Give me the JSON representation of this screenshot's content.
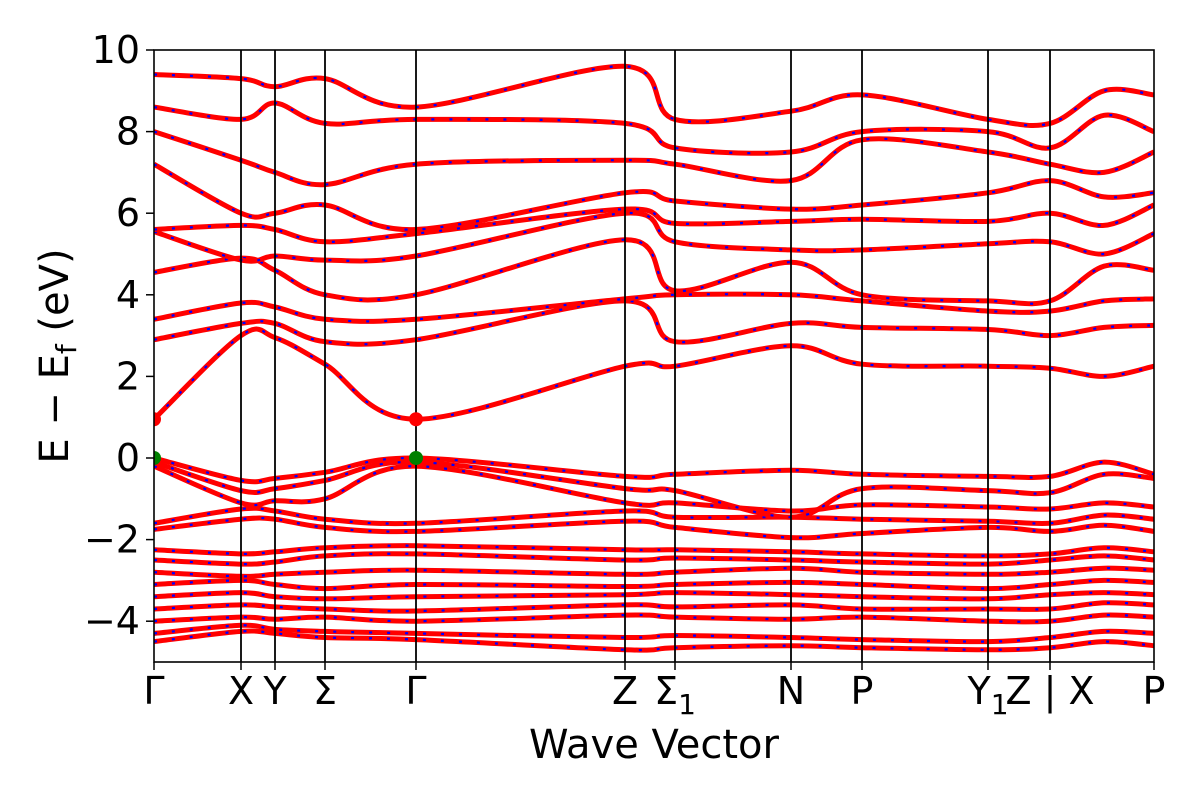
{
  "chart_data": {
    "type": "line",
    "title": "",
    "xlabel": "Wave Vector",
    "ylabel": {
      "pre": "E − E",
      "sub": "f",
      "post": " (eV)"
    },
    "ylim": [
      -5,
      10
    ],
    "yticks": [
      {
        "value": 10,
        "label": "10"
      },
      {
        "value": 8,
        "label": "8"
      },
      {
        "value": 6,
        "label": "6"
      },
      {
        "value": 4,
        "label": "4"
      },
      {
        "value": 2,
        "label": "2"
      },
      {
        "value": 0,
        "label": "0"
      },
      {
        "value": -2,
        "label": "−2"
      },
      {
        "value": -4,
        "label": "−4"
      }
    ],
    "xlim": [
      0,
      1
    ],
    "kpoints": [
      {
        "x": 0.0,
        "label": "Γ",
        "sub": ""
      },
      {
        "x": 0.087,
        "label": "X",
        "sub": ""
      },
      {
        "x": 0.121,
        "label": "Y",
        "sub": ""
      },
      {
        "x": 0.171,
        "label": "Σ",
        "sub": ""
      },
      {
        "x": 0.262,
        "label": "Γ",
        "sub": ""
      },
      {
        "x": 0.471,
        "label": "Z",
        "sub": ""
      },
      {
        "x": 0.521,
        "label": "Σ",
        "sub": "1"
      },
      {
        "x": 0.637,
        "label": "N",
        "sub": ""
      },
      {
        "x": 0.708,
        "label": "P",
        "sub": ""
      },
      {
        "x": 0.834,
        "label": "Y",
        "sub": "1"
      },
      {
        "x": 0.896,
        "label": "Z | X",
        "sub": ""
      },
      {
        "x": 1.0,
        "label": "P",
        "sub": ""
      }
    ],
    "band_colors": {
      "line": "#ff0000",
      "dash": "#0000ff"
    },
    "highlight_points": [
      {
        "x": 0.0,
        "y": 0.95,
        "color": "#ff0000",
        "label": "CBM"
      },
      {
        "x": 0.262,
        "y": 0.95,
        "color": "#ff0000",
        "label": "CBM"
      },
      {
        "x": 0.0,
        "y": 0.0,
        "color": "#008000",
        "label": "VBM"
      },
      {
        "x": 0.262,
        "y": 0.0,
        "color": "#008000",
        "label": "VBM"
      }
    ],
    "bands": [
      [
        [
          0,
          -4.5
        ],
        [
          0.087,
          -4.25
        ],
        [
          0.121,
          -4.3
        ],
        [
          0.171,
          -4.4
        ],
        [
          0.262,
          -4.45
        ],
        [
          0.471,
          -4.7
        ],
        [
          0.521,
          -4.65
        ],
        [
          0.637,
          -4.6
        ],
        [
          0.708,
          -4.65
        ],
        [
          0.834,
          -4.7
        ],
        [
          0.896,
          -4.65
        ],
        [
          0.95,
          -4.5
        ],
        [
          1,
          -4.6
        ]
      ],
      [
        [
          0,
          -4.3
        ],
        [
          0.087,
          -4.1
        ],
        [
          0.121,
          -4.2
        ],
        [
          0.171,
          -4.25
        ],
        [
          0.262,
          -4.3
        ],
        [
          0.471,
          -4.4
        ],
        [
          0.521,
          -4.35
        ],
        [
          0.637,
          -4.4
        ],
        [
          0.708,
          -4.45
        ],
        [
          0.834,
          -4.5
        ],
        [
          0.896,
          -4.4
        ],
        [
          0.95,
          -4.25
        ],
        [
          1,
          -4.3
        ]
      ],
      [
        [
          0,
          -4.0
        ],
        [
          0.087,
          -3.9
        ],
        [
          0.121,
          -3.95
        ],
        [
          0.171,
          -3.9
        ],
        [
          0.262,
          -4.0
        ],
        [
          0.471,
          -3.85
        ],
        [
          0.521,
          -3.9
        ],
        [
          0.637,
          -3.95
        ],
        [
          0.708,
          -3.9
        ],
        [
          0.834,
          -4.0
        ],
        [
          0.896,
          -4.0
        ],
        [
          0.95,
          -3.85
        ],
        [
          1,
          -3.9
        ]
      ],
      [
        [
          0,
          -3.7
        ],
        [
          0.087,
          -3.6
        ],
        [
          0.121,
          -3.65
        ],
        [
          0.171,
          -3.7
        ],
        [
          0.262,
          -3.75
        ],
        [
          0.471,
          -3.6
        ],
        [
          0.521,
          -3.65
        ],
        [
          0.637,
          -3.6
        ],
        [
          0.708,
          -3.7
        ],
        [
          0.834,
          -3.7
        ],
        [
          0.896,
          -3.7
        ],
        [
          0.95,
          -3.55
        ],
        [
          1,
          -3.6
        ]
      ],
      [
        [
          0,
          -3.4
        ],
        [
          0.087,
          -3.3
        ],
        [
          0.121,
          -3.4
        ],
        [
          0.171,
          -3.45
        ],
        [
          0.262,
          -3.4
        ],
        [
          0.471,
          -3.35
        ],
        [
          0.521,
          -3.3
        ],
        [
          0.637,
          -3.35
        ],
        [
          0.708,
          -3.4
        ],
        [
          0.834,
          -3.45
        ],
        [
          0.896,
          -3.35
        ],
        [
          0.95,
          -3.3
        ],
        [
          1,
          -3.35
        ]
      ],
      [
        [
          0,
          -3.1
        ],
        [
          0.087,
          -3.0
        ],
        [
          0.121,
          -3.1
        ],
        [
          0.171,
          -3.2
        ],
        [
          0.262,
          -3.1
        ],
        [
          0.471,
          -3.15
        ],
        [
          0.521,
          -3.1
        ],
        [
          0.637,
          -3.05
        ],
        [
          0.708,
          -3.1
        ],
        [
          0.834,
          -3.2
        ],
        [
          0.896,
          -3.1
        ],
        [
          0.95,
          -3.0
        ],
        [
          1,
          -3.05
        ]
      ],
      [
        [
          0,
          -2.8
        ],
        [
          0.087,
          -2.9
        ],
        [
          0.121,
          -2.85
        ],
        [
          0.171,
          -2.8
        ],
        [
          0.262,
          -2.75
        ],
        [
          0.471,
          -2.85
        ],
        [
          0.521,
          -2.8
        ],
        [
          0.637,
          -2.7
        ],
        [
          0.708,
          -2.8
        ],
        [
          0.834,
          -2.85
        ],
        [
          0.896,
          -2.8
        ],
        [
          0.95,
          -2.7
        ],
        [
          1,
          -2.75
        ]
      ],
      [
        [
          0,
          -2.5
        ],
        [
          0.087,
          -2.6
        ],
        [
          0.121,
          -2.55
        ],
        [
          0.171,
          -2.4
        ],
        [
          0.262,
          -2.35
        ],
        [
          0.471,
          -2.5
        ],
        [
          0.521,
          -2.45
        ],
        [
          0.637,
          -2.5
        ],
        [
          0.708,
          -2.55
        ],
        [
          0.834,
          -2.6
        ],
        [
          0.896,
          -2.5
        ],
        [
          0.95,
          -2.4
        ],
        [
          1,
          -2.5
        ]
      ],
      [
        [
          0,
          -2.25
        ],
        [
          0.087,
          -2.35
        ],
        [
          0.121,
          -2.3
        ],
        [
          0.171,
          -2.2
        ],
        [
          0.262,
          -2.15
        ],
        [
          0.471,
          -2.25
        ],
        [
          0.521,
          -2.25
        ],
        [
          0.637,
          -2.3
        ],
        [
          0.708,
          -2.35
        ],
        [
          0.834,
          -2.4
        ],
        [
          0.896,
          -2.35
        ],
        [
          0.95,
          -2.2
        ],
        [
          1,
          -2.3
        ]
      ],
      [
        [
          0,
          -1.75
        ],
        [
          0.087,
          -1.5
        ],
        [
          0.121,
          -1.5
        ],
        [
          0.171,
          -1.7
        ],
        [
          0.262,
          -1.8
        ],
        [
          0.471,
          -1.55
        ],
        [
          0.521,
          -1.7
        ],
        [
          0.637,
          -1.95
        ],
        [
          0.708,
          -1.85
        ],
        [
          0.834,
          -1.7
        ],
        [
          0.896,
          -1.8
        ],
        [
          0.95,
          -1.65
        ],
        [
          1,
          -1.8
        ]
      ],
      [
        [
          0,
          -1.6
        ],
        [
          0.087,
          -1.25
        ],
        [
          0.121,
          -1.3
        ],
        [
          0.171,
          -1.5
        ],
        [
          0.262,
          -1.6
        ],
        [
          0.471,
          -1.3
        ],
        [
          0.521,
          -1.45
        ],
        [
          0.637,
          -1.45
        ],
        [
          0.708,
          -1.5
        ],
        [
          0.834,
          -1.55
        ],
        [
          0.896,
          -1.6
        ],
        [
          0.95,
          -1.4
        ],
        [
          1,
          -1.5
        ]
      ],
      [
        [
          0,
          -0.2
        ],
        [
          0.087,
          -1.1
        ],
        [
          0.121,
          -1.05
        ],
        [
          0.171,
          -1.0
        ],
        [
          0.262,
          -0.2
        ],
        [
          0.471,
          -1.1
        ],
        [
          0.521,
          -1.1
        ],
        [
          0.637,
          -1.3
        ],
        [
          0.708,
          -1.15
        ],
        [
          0.834,
          -1.2
        ],
        [
          0.896,
          -1.25
        ],
        [
          0.95,
          -1.1
        ],
        [
          1,
          -1.2
        ]
      ],
      [
        [
          0,
          -0.1
        ],
        [
          0.087,
          -0.8
        ],
        [
          0.121,
          -0.75
        ],
        [
          0.171,
          -0.55
        ],
        [
          0.262,
          -0.1
        ],
        [
          0.471,
          -0.75
        ],
        [
          0.521,
          -0.8
        ],
        [
          0.637,
          -1.45
        ],
        [
          0.708,
          -0.75
        ],
        [
          0.834,
          -0.8
        ],
        [
          0.896,
          -0.85
        ],
        [
          0.95,
          -0.4
        ],
        [
          1,
          -0.5
        ]
      ],
      [
        [
          0,
          0.0
        ],
        [
          0.087,
          -0.55
        ],
        [
          0.121,
          -0.5
        ],
        [
          0.171,
          -0.35
        ],
        [
          0.262,
          0.0
        ],
        [
          0.471,
          -0.45
        ],
        [
          0.521,
          -0.4
        ],
        [
          0.637,
          -0.3
        ],
        [
          0.708,
          -0.4
        ],
        [
          0.834,
          -0.45
        ],
        [
          0.896,
          -0.45
        ],
        [
          0.95,
          -0.1
        ],
        [
          1,
          -0.4
        ]
      ],
      [
        [
          0,
          0.95
        ],
        [
          0.087,
          3.0
        ],
        [
          0.121,
          2.95
        ],
        [
          0.171,
          2.3
        ],
        [
          0.262,
          0.95
        ],
        [
          0.471,
          2.25
        ],
        [
          0.521,
          2.25
        ],
        [
          0.637,
          2.75
        ],
        [
          0.708,
          2.3
        ],
        [
          0.834,
          2.25
        ],
        [
          0.896,
          2.2
        ],
        [
          0.95,
          2.0
        ],
        [
          1,
          2.25
        ]
      ],
      [
        [
          0,
          2.9
        ],
        [
          0.087,
          3.3
        ],
        [
          0.121,
          3.3
        ],
        [
          0.171,
          2.85
        ],
        [
          0.262,
          2.9
        ],
        [
          0.471,
          3.85
        ],
        [
          0.521,
          2.85
        ],
        [
          0.637,
          3.3
        ],
        [
          0.708,
          3.2
        ],
        [
          0.834,
          3.15
        ],
        [
          0.896,
          3.0
        ],
        [
          0.95,
          3.2
        ],
        [
          1,
          3.25
        ]
      ],
      [
        [
          0,
          3.4
        ],
        [
          0.087,
          3.8
        ],
        [
          0.121,
          3.7
        ],
        [
          0.171,
          3.4
        ],
        [
          0.262,
          3.4
        ],
        [
          0.471,
          3.9
        ],
        [
          0.521,
          4.0
        ],
        [
          0.637,
          4.0
        ],
        [
          0.708,
          3.85
        ],
        [
          0.834,
          3.6
        ],
        [
          0.896,
          3.6
        ],
        [
          0.95,
          3.85
        ],
        [
          1,
          3.9
        ]
      ],
      [
        [
          0,
          4.55
        ],
        [
          0.087,
          4.9
        ],
        [
          0.121,
          4.6
        ],
        [
          0.171,
          4.0
        ],
        [
          0.262,
          4.0
        ],
        [
          0.471,
          5.35
        ],
        [
          0.521,
          4.1
        ],
        [
          0.637,
          4.8
        ],
        [
          0.708,
          4.0
        ],
        [
          0.834,
          3.85
        ],
        [
          0.896,
          3.85
        ],
        [
          0.95,
          4.7
        ],
        [
          1,
          4.6
        ]
      ],
      [
        [
          0,
          5.55
        ],
        [
          0.087,
          4.85
        ],
        [
          0.121,
          4.95
        ],
        [
          0.171,
          4.85
        ],
        [
          0.262,
          4.95
        ],
        [
          0.471,
          6.0
        ],
        [
          0.521,
          5.3
        ],
        [
          0.637,
          5.1
        ],
        [
          0.708,
          5.1
        ],
        [
          0.834,
          5.25
        ],
        [
          0.896,
          5.3
        ],
        [
          0.95,
          5.0
        ],
        [
          1,
          5.5
        ]
      ],
      [
        [
          0,
          5.6
        ],
        [
          0.087,
          5.7
        ],
        [
          0.121,
          5.6
        ],
        [
          0.171,
          5.3
        ],
        [
          0.262,
          5.5
        ],
        [
          0.471,
          6.1
        ],
        [
          0.521,
          5.75
        ],
        [
          0.637,
          5.8
        ],
        [
          0.708,
          5.85
        ],
        [
          0.834,
          5.8
        ],
        [
          0.896,
          6.0
        ],
        [
          0.95,
          5.7
        ],
        [
          1,
          6.2
        ]
      ],
      [
        [
          0,
          7.2
        ],
        [
          0.087,
          6.0
        ],
        [
          0.121,
          6.0
        ],
        [
          0.171,
          6.2
        ],
        [
          0.262,
          5.6
        ],
        [
          0.471,
          6.5
        ],
        [
          0.521,
          6.3
        ],
        [
          0.637,
          6.1
        ],
        [
          0.708,
          6.2
        ],
        [
          0.834,
          6.5
        ],
        [
          0.896,
          6.8
        ],
        [
          0.95,
          6.4
        ],
        [
          1,
          6.5
        ]
      ],
      [
        [
          0,
          8.0
        ],
        [
          0.087,
          7.3
        ],
        [
          0.121,
          7.0
        ],
        [
          0.171,
          6.7
        ],
        [
          0.262,
          7.2
        ],
        [
          0.471,
          7.3
        ],
        [
          0.521,
          7.2
        ],
        [
          0.637,
          6.8
        ],
        [
          0.708,
          7.8
        ],
        [
          0.834,
          7.5
        ],
        [
          0.896,
          7.2
        ],
        [
          0.95,
          7.0
        ],
        [
          1,
          7.5
        ]
      ],
      [
        [
          0,
          8.6
        ],
        [
          0.087,
          8.3
        ],
        [
          0.121,
          8.7
        ],
        [
          0.171,
          8.2
        ],
        [
          0.262,
          8.3
        ],
        [
          0.471,
          8.2
        ],
        [
          0.521,
          7.6
        ],
        [
          0.637,
          7.5
        ],
        [
          0.708,
          8.0
        ],
        [
          0.834,
          8.0
        ],
        [
          0.896,
          7.6
        ],
        [
          0.95,
          8.4
        ],
        [
          1,
          8.0
        ]
      ],
      [
        [
          0,
          9.4
        ],
        [
          0.087,
          9.3
        ],
        [
          0.121,
          9.1
        ],
        [
          0.171,
          9.3
        ],
        [
          0.262,
          8.6
        ],
        [
          0.471,
          9.6
        ],
        [
          0.521,
          8.3
        ],
        [
          0.637,
          8.5
        ],
        [
          0.708,
          8.9
        ],
        [
          0.834,
          8.3
        ],
        [
          0.896,
          8.2
        ],
        [
          0.95,
          9.0
        ],
        [
          1,
          8.9
        ]
      ]
    ]
  }
}
